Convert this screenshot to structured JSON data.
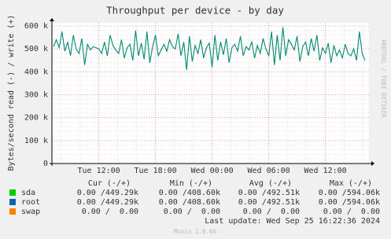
{
  "chart_data": {
    "type": "line",
    "title": "Throughput per device - by day",
    "y_label": "Bytes/second read (-) / write (+)",
    "side_label": "RRDTOOL / TOBI OETIKER",
    "footer": "Last update: Wed Sep 25 16:22:36 2024",
    "credit": "Munin 2.0.66",
    "ylim": [
      0,
      600000
    ],
    "yticks": [
      0,
      {
        "value": 100000,
        "label": "100 k"
      },
      {
        "value": 200000,
        "label": "200 k"
      },
      {
        "value": 300000,
        "label": "300 k"
      },
      {
        "value": 400000,
        "label": "400 k"
      },
      {
        "value": 500000,
        "label": "500 k"
      },
      {
        "value": 600000,
        "label": "600 k"
      }
    ],
    "grid": true,
    "categories": [
      null,
      null,
      null,
      null,
      null,
      null,
      null,
      null,
      null,
      null,
      null,
      null,
      null,
      null,
      null,
      null,
      "Tue 12:00",
      null,
      null,
      null,
      null,
      null,
      null,
      null,
      null,
      null,
      null,
      null,
      null,
      null,
      null,
      null,
      null,
      null,
      null,
      null,
      "Tue 18:00",
      null,
      null,
      null,
      null,
      null,
      null,
      null,
      null,
      null,
      null,
      null,
      null,
      null,
      null,
      null,
      null,
      null,
      null,
      null,
      "Wed 00:00",
      null,
      null,
      null,
      null,
      null,
      null,
      null,
      null,
      null,
      null,
      null,
      null,
      null,
      null,
      null,
      null,
      null,
      null,
      null,
      "Wed 06:00",
      null,
      null,
      null,
      null,
      null,
      null,
      null,
      null,
      null,
      null,
      null,
      null,
      null,
      null,
      null,
      null,
      null,
      null,
      null,
      "Wed 12:00",
      null,
      null,
      null,
      null,
      null,
      null,
      null,
      null,
      null,
      null,
      null,
      null,
      null,
      null
    ],
    "series": [
      {
        "name": "sda",
        "color": "#00cc00",
        "values": [
          510000,
          540000,
          505000,
          575000,
          490000,
          530000,
          470000,
          560000,
          500000,
          480000,
          545000,
          430000,
          520000,
          495000,
          510000,
          505000,
          500000,
          480000,
          530000,
          470000,
          560000,
          515000,
          495000,
          480000,
          540000,
          460000,
          505000,
          520000,
          450000,
          580000,
          470000,
          525000,
          455000,
          575000,
          440000,
          510000,
          560000,
          470000,
          495000,
          520000,
          490000,
          540000,
          510000,
          500000,
          565000,
          470000,
          530000,
          408600,
          555000,
          445000,
          515000,
          480000,
          540000,
          460000,
          505000,
          525000,
          420000,
          560000,
          450000,
          530000,
          475000,
          545000,
          440000,
          505000,
          520000,
          490000,
          555000,
          470000,
          510000,
          495000,
          530000,
          460000,
          515000,
          480000,
          545000,
          500000,
          470000,
          575000,
          430000,
          560000,
          450000,
          594060,
          470000,
          540000,
          520000,
          495000,
          555000,
          445000,
          510000,
          530000,
          470000,
          545000,
          490000,
          560000,
          450000,
          505000,
          480000,
          525000,
          440000,
          515000,
          470000,
          495000,
          460000,
          520000,
          480000,
          470000,
          500000,
          450000,
          575000,
          480000,
          449290
        ]
      },
      {
        "name": "root",
        "color": "#0066b3",
        "values": [
          510000,
          540000,
          505000,
          575000,
          490000,
          530000,
          470000,
          560000,
          500000,
          480000,
          545000,
          430000,
          520000,
          495000,
          510000,
          505000,
          500000,
          480000,
          530000,
          470000,
          560000,
          515000,
          495000,
          480000,
          540000,
          460000,
          505000,
          520000,
          450000,
          580000,
          470000,
          525000,
          455000,
          575000,
          440000,
          510000,
          560000,
          470000,
          495000,
          520000,
          490000,
          540000,
          510000,
          500000,
          565000,
          470000,
          530000,
          408600,
          555000,
          445000,
          515000,
          480000,
          540000,
          460000,
          505000,
          525000,
          420000,
          560000,
          450000,
          530000,
          475000,
          545000,
          440000,
          505000,
          520000,
          490000,
          555000,
          470000,
          510000,
          495000,
          530000,
          460000,
          515000,
          480000,
          545000,
          500000,
          470000,
          575000,
          430000,
          560000,
          450000,
          594060,
          470000,
          540000,
          520000,
          495000,
          555000,
          445000,
          510000,
          530000,
          470000,
          545000,
          490000,
          560000,
          450000,
          505000,
          480000,
          525000,
          440000,
          515000,
          470000,
          495000,
          460000,
          520000,
          480000,
          470000,
          500000,
          450000,
          575000,
          480000,
          449290
        ]
      },
      {
        "name": "swap",
        "color": "#ff8000",
        "values": [
          0,
          0,
          0,
          0,
          0,
          0,
          0,
          0,
          0,
          0,
          0,
          0,
          0,
          0,
          0,
          0,
          0,
          0,
          0,
          0,
          0,
          0,
          0,
          0,
          0,
          0,
          0,
          0,
          0,
          0,
          0,
          0,
          0,
          0,
          0,
          0,
          0,
          0,
          0,
          0,
          0,
          0,
          0,
          0,
          0,
          0,
          0,
          0,
          0,
          0,
          0,
          0,
          0,
          0,
          0,
          0,
          0,
          0,
          0,
          0,
          0,
          0,
          0,
          0,
          0,
          0,
          0,
          0,
          0,
          0,
          0,
          0,
          0,
          0,
          0,
          0,
          0,
          0,
          0,
          0,
          0,
          0,
          0,
          0,
          0,
          0,
          0,
          0,
          0,
          0,
          0,
          0,
          0,
          0,
          0,
          0,
          0,
          0,
          0,
          0,
          0,
          0,
          0,
          0,
          0,
          0,
          0,
          0,
          0,
          0,
          0
        ]
      }
    ],
    "legend_table": {
      "headers": [
        "Cur (-/+)",
        "Min (-/+)",
        "Avg (-/+)",
        "Max (-/+)"
      ],
      "rows": [
        [
          "0.00 /449.29k",
          "0.00 /408.60k",
          "0.00 /492.51k",
          "0.00 /594.06k"
        ],
        [
          "0.00 /449.29k",
          "0.00 /408.60k",
          "0.00 /492.51k",
          "0.00 /594.06k"
        ],
        [
          "0.00 /  0.00",
          "0.00 /  0.00",
          "0.00 /  0.00",
          "0.00 /  0.00"
        ]
      ]
    }
  }
}
